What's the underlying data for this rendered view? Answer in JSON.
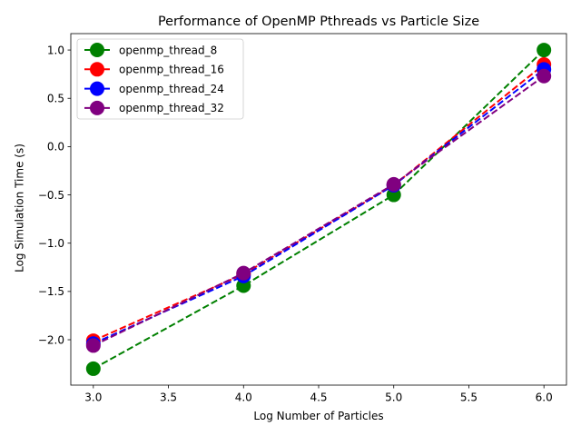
{
  "chart_data": {
    "type": "line",
    "title": "Performance of OpenMP Pthreads vs Particle Size",
    "xlabel": "Log Number of Particles",
    "ylabel": "Log Simulation Time (s)",
    "xlim": [
      2.85,
      6.15
    ],
    "ylim": [
      -2.47,
      1.17
    ],
    "xticks": [
      3.0,
      3.5,
      4.0,
      4.5,
      5.0,
      5.5,
      6.0
    ],
    "xtick_labels": [
      "3.0",
      "3.5",
      "4.0",
      "4.5",
      "5.0",
      "5.5",
      "6.0"
    ],
    "yticks": [
      -2.0,
      -1.5,
      -1.0,
      -0.5,
      0.0,
      0.5,
      1.0
    ],
    "ytick_labels": [
      "−2.0",
      "−1.5",
      "−1.0",
      "−0.5",
      "0.0",
      "0.5",
      "1.0"
    ],
    "grid": false,
    "legend_position": "upper-left",
    "line_style": "dashed",
    "marker": "circle",
    "x": [
      3.0,
      4.0,
      5.0,
      6.0
    ],
    "series": [
      {
        "name": "openmp_thread_8",
        "color": "#008000",
        "values": [
          -2.3,
          -1.44,
          -0.5,
          1.0
        ]
      },
      {
        "name": "openmp_thread_16",
        "color": "#ff0000",
        "values": [
          -2.01,
          -1.32,
          -0.4,
          0.85
        ]
      },
      {
        "name": "openmp_thread_24",
        "color": "#0000ff",
        "values": [
          -2.04,
          -1.34,
          -0.4,
          0.8
        ]
      },
      {
        "name": "openmp_thread_32",
        "color": "#800080",
        "values": [
          -2.06,
          -1.31,
          -0.39,
          0.73
        ]
      }
    ]
  }
}
